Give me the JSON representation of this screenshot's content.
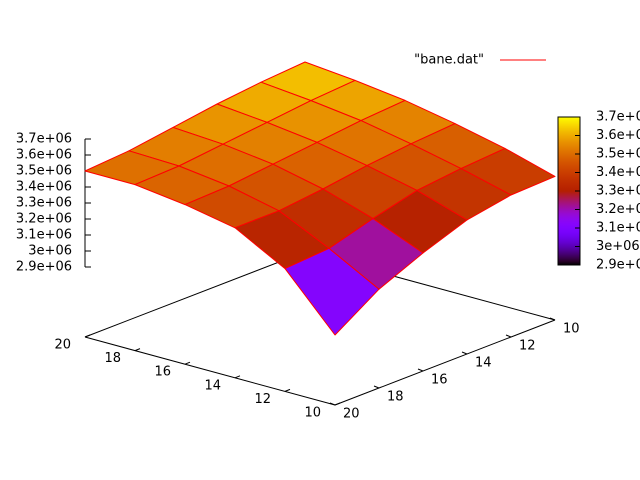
{
  "chart_data": {
    "type": "surface",
    "legend_label": "\"bane.dat\"",
    "line_color": "#ff0000",
    "x": [
      10,
      12,
      14,
      16,
      18,
      20
    ],
    "y": [
      10,
      12,
      14,
      16,
      18,
      20
    ],
    "z": [
      [
        3360000,
        3350000,
        3300000,
        3200000,
        3080000,
        2900000
      ],
      [
        3450000,
        3430000,
        3400000,
        3330000,
        3250000,
        3230000
      ],
      [
        3520000,
        3500000,
        3470000,
        3430000,
        3400000,
        3400000
      ],
      [
        3580000,
        3560000,
        3530000,
        3500000,
        3470000,
        3460000
      ],
      [
        3620000,
        3600000,
        3570000,
        3540000,
        3510000,
        3500000
      ],
      [
        3650000,
        3630000,
        3600000,
        3560000,
        3520000,
        3500000
      ]
    ],
    "xlim": [
      10,
      20
    ],
    "ylim": [
      10,
      20
    ],
    "zlim": [
      2900000,
      3700000
    ],
    "xticks": [
      10,
      12,
      14,
      16,
      18,
      20
    ],
    "yticks": [
      10,
      12,
      14,
      16,
      18,
      20
    ],
    "zticks": [
      {
        "value": 2900000,
        "label": "2.9e+06"
      },
      {
        "value": 3000000,
        "label": "3e+06"
      },
      {
        "value": 3100000,
        "label": "3.1e+06"
      },
      {
        "value": 3200000,
        "label": "3.2e+06"
      },
      {
        "value": 3300000,
        "label": "3.3e+06"
      },
      {
        "value": 3400000,
        "label": "3.4e+06"
      },
      {
        "value": 3500000,
        "label": "3.5e+06"
      },
      {
        "value": 3600000,
        "label": "3.6e+06"
      },
      {
        "value": 3700000,
        "label": "3.7e+06"
      }
    ],
    "palette": "gnuplot-pm3d"
  }
}
